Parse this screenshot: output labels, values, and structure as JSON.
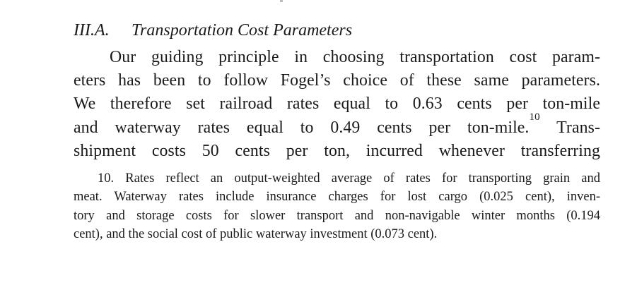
{
  "heading": {
    "number": "III.A.",
    "title": "Transportation Cost Parameters"
  },
  "body": {
    "lines": [
      "Our guiding principle in choosing transportation cost param-",
      "eters has been to follow Fogel’s choice of these same parameters.",
      "We therefore set railroad rates equal to 0.63 cents per ton-mile",
      "and waterway rates equal to 0.49 cents per ton-mile.",
      "shipment costs 50 cents per ton, incurred whenever transferring"
    ],
    "footnote_marker": "10",
    "line4_tail": " Trans-"
  },
  "footnote": {
    "lines": [
      "10. Rates reflect an output-weighted average of rates for transporting grain and",
      "meat. Waterway rates include insurance charges for lost cargo (0.025 cent), inven-",
      "tory and storage costs for slower transport and non-navigable winter months (0.194",
      "cent), and the social cost of public waterway investment (0.073 cent)."
    ]
  }
}
